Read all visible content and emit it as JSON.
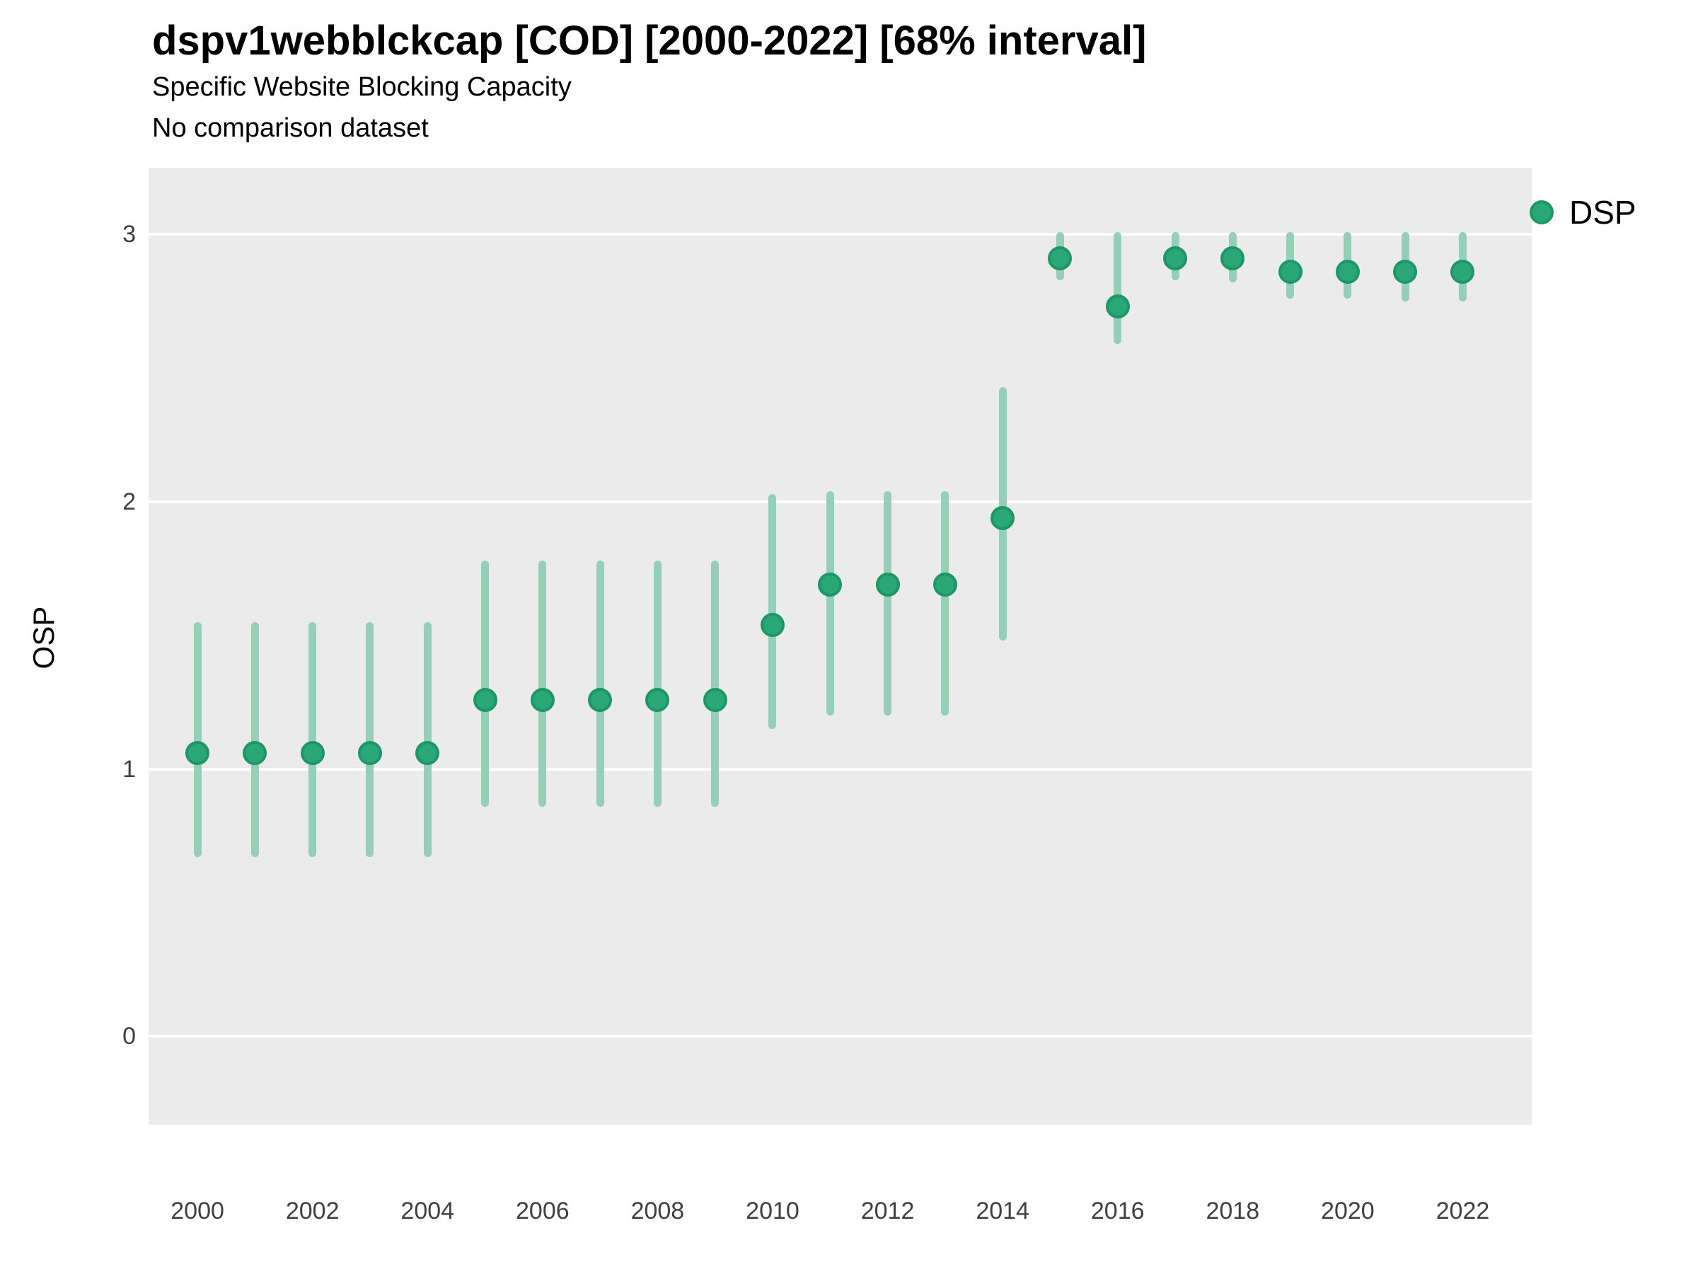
{
  "header": {
    "title": "dspv1webblckcap [COD] [2000-2022] [68% interval]",
    "subtitle": "Specific Website Blocking Capacity",
    "comparison_note": "No comparison dataset"
  },
  "legend": {
    "label": "DSP"
  },
  "colors": {
    "point_fill": "#29A776",
    "point_border": "#1E9668",
    "interval_bar": "#95CEB9",
    "panel_background": "#EBEBEB",
    "gridline": "#FFFFFF",
    "axis_text": "#404040",
    "title_text": "#000000"
  },
  "chart_data": {
    "type": "scatter",
    "subtype": "pointrange",
    "title": "dspv1webblckcap [COD] [2000-2022] [68% interval]",
    "subtitle": "Specific Website Blocking Capacity",
    "note": "No comparison dataset",
    "interval_level": "68%",
    "xlabel": "",
    "ylabel": "OSP",
    "x_tick_labels": [
      2000,
      2002,
      2004,
      2006,
      2008,
      2010,
      2012,
      2014,
      2016,
      2018,
      2020,
      2022
    ],
    "y_tick_labels": [
      0,
      1,
      2,
      3
    ],
    "xlim": [
      1999.15,
      2023.2
    ],
    "ylim": [
      -0.33,
      3.25
    ],
    "grid": "major-horizontal-only",
    "legend_position": "right-top",
    "series": [
      {
        "name": "DSP",
        "color": "#29A776",
        "points": [
          {
            "year": 2000,
            "value": 1.06,
            "lo": 0.67,
            "hi": 1.55
          },
          {
            "year": 2001,
            "value": 1.06,
            "lo": 0.67,
            "hi": 1.55
          },
          {
            "year": 2002,
            "value": 1.06,
            "lo": 0.67,
            "hi": 1.55
          },
          {
            "year": 2003,
            "value": 1.06,
            "lo": 0.67,
            "hi": 1.55
          },
          {
            "year": 2004,
            "value": 1.06,
            "lo": 0.67,
            "hi": 1.55
          },
          {
            "year": 2005,
            "value": 1.26,
            "lo": 0.86,
            "hi": 1.78
          },
          {
            "year": 2006,
            "value": 1.26,
            "lo": 0.86,
            "hi": 1.78
          },
          {
            "year": 2007,
            "value": 1.26,
            "lo": 0.86,
            "hi": 1.78
          },
          {
            "year": 2008,
            "value": 1.26,
            "lo": 0.86,
            "hi": 1.78
          },
          {
            "year": 2009,
            "value": 1.26,
            "lo": 0.86,
            "hi": 1.78
          },
          {
            "year": 2010,
            "value": 1.54,
            "lo": 1.15,
            "hi": 2.03
          },
          {
            "year": 2011,
            "value": 1.69,
            "lo": 1.2,
            "hi": 2.04
          },
          {
            "year": 2012,
            "value": 1.69,
            "lo": 1.2,
            "hi": 2.04
          },
          {
            "year": 2013,
            "value": 1.69,
            "lo": 1.2,
            "hi": 2.04
          },
          {
            "year": 2014,
            "value": 1.94,
            "lo": 1.48,
            "hi": 2.43
          },
          {
            "year": 2015,
            "value": 2.91,
            "lo": 2.83,
            "hi": 3.01
          },
          {
            "year": 2016,
            "value": 2.73,
            "lo": 2.59,
            "hi": 3.01
          },
          {
            "year": 2017,
            "value": 2.91,
            "lo": 2.83,
            "hi": 3.01
          },
          {
            "year": 2018,
            "value": 2.91,
            "lo": 2.82,
            "hi": 3.01
          },
          {
            "year": 2019,
            "value": 2.86,
            "lo": 2.76,
            "hi": 3.01
          },
          {
            "year": 2020,
            "value": 2.86,
            "lo": 2.76,
            "hi": 3.01
          },
          {
            "year": 2021,
            "value": 2.86,
            "lo": 2.75,
            "hi": 3.01
          },
          {
            "year": 2022,
            "value": 2.86,
            "lo": 2.75,
            "hi": 3.01
          }
        ]
      }
    ]
  }
}
